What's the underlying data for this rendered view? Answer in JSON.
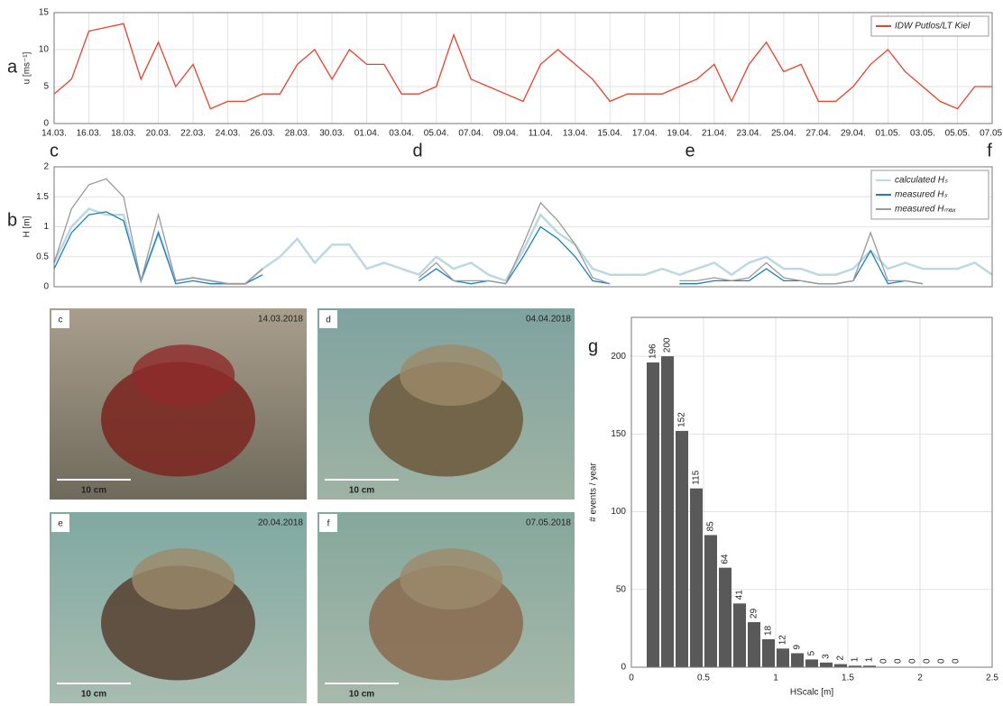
{
  "chart_data": [
    {
      "type": "line",
      "panel_label": "a",
      "y_label": "u [ms⁻¹]",
      "categories": [
        "14.03.",
        null,
        "16.03.",
        null,
        "18.03.",
        null,
        "20.03.",
        null,
        "22.03.",
        null,
        "24.03.",
        null,
        "26.03.",
        null,
        "28.03.",
        null,
        "30.03.",
        null,
        "01.04.",
        null,
        "03.04.",
        null,
        "05.04.",
        null,
        "07.04.",
        null,
        "09.04.",
        null,
        "11.04.",
        null,
        "13.04.",
        null,
        "15.04.",
        null,
        "17.04.",
        null,
        "19.04.",
        null,
        "21.04.",
        null,
        "23.04.",
        null,
        "25.04.",
        null,
        "27.04.",
        null,
        "29.04.",
        null,
        "01.05.",
        null,
        "03.05.",
        null,
        "05.05.",
        null,
        "07.05."
      ],
      "series": [
        {
          "name": "IDW Putlos/LT Kiel",
          "color": "#e8412c",
          "values": [
            4,
            6,
            12.5,
            13,
            13.5,
            6,
            11,
            5,
            8,
            2,
            3,
            3,
            4,
            4,
            8,
            10,
            6,
            10,
            8,
            8,
            4,
            4,
            5,
            12,
            6,
            5,
            4,
            3,
            8,
            10,
            8,
            6,
            3,
            4,
            4,
            4,
            5,
            6,
            8,
            3,
            8,
            11,
            7,
            8,
            3,
            3,
            5,
            8,
            10,
            7,
            5,
            3,
            2,
            5,
            5
          ]
        }
      ],
      "ylim": [
        0,
        15
      ],
      "yticks": [
        0,
        5,
        10,
        15
      ],
      "grid": true,
      "legend": "top-right"
    },
    {
      "type": "line",
      "panel_label": "b",
      "y_label": "H [m]",
      "categories": [
        null,
        null,
        null,
        null,
        null,
        null,
        null,
        null,
        null,
        null,
        null,
        null,
        null,
        null,
        null,
        null,
        null,
        null,
        null,
        null,
        null,
        null,
        null,
        null,
        null,
        null,
        null,
        null,
        null,
        null,
        null,
        null,
        null,
        null,
        null,
        null,
        null,
        null,
        null,
        null,
        null,
        null,
        null,
        null,
        null,
        null,
        null,
        null,
        null,
        null,
        null,
        null,
        null,
        null,
        null
      ],
      "series": [
        {
          "name": "calculated Hₛ",
          "color": "#bcd9e2",
          "values": [
            0.4,
            1.0,
            1.3,
            1.2,
            1.2,
            0.1,
            0.9,
            0.1,
            0.15,
            0.1,
            0.05,
            0.05,
            0.3,
            0.5,
            0.8,
            0.4,
            0.7,
            0.7,
            0.3,
            0.4,
            0.3,
            0.2,
            0.5,
            0.3,
            0.4,
            0.2,
            0.1,
            0.6,
            1.2,
            0.9,
            0.7,
            0.3,
            0.2,
            0.2,
            0.2,
            0.3,
            0.2,
            0.3,
            0.4,
            0.2,
            0.4,
            0.5,
            0.3,
            0.3,
            0.2,
            0.2,
            0.3,
            0.6,
            0.3,
            0.4,
            0.3,
            0.3,
            0.3,
            0.4,
            0.2
          ]
        },
        {
          "name": "measured Hₛ",
          "color": "#1a7fc0",
          "values": [
            0.3,
            0.9,
            1.2,
            1.25,
            1.1,
            0.1,
            0.9,
            0.05,
            0.1,
            0.05,
            0.05,
            0.05,
            0.2,
            null,
            null,
            null,
            null,
            null,
            null,
            null,
            null,
            0.1,
            0.3,
            0.1,
            0.05,
            0.1,
            0.05,
            0.5,
            1.0,
            0.8,
            0.5,
            0.1,
            0.05,
            null,
            null,
            null,
            0.05,
            0.05,
            0.1,
            0.1,
            0.1,
            0.3,
            0.1,
            0.1,
            0.05,
            0.05,
            0.1,
            0.6,
            0.05,
            0.1,
            0.05,
            null,
            null,
            null,
            null
          ]
        },
        {
          "name": "measured Hₘₐₓ",
          "color": "#9a9a9a",
          "values": [
            0.4,
            1.3,
            1.7,
            1.8,
            1.5,
            0.1,
            1.2,
            0.1,
            0.15,
            0.1,
            0.05,
            0.05,
            0.3,
            null,
            null,
            null,
            null,
            null,
            null,
            null,
            null,
            0.15,
            0.4,
            0.1,
            0.1,
            0.1,
            0.05,
            0.7,
            1.4,
            1.1,
            0.7,
            0.15,
            0.05,
            null,
            null,
            null,
            0.1,
            0.1,
            0.15,
            0.1,
            0.15,
            0.4,
            0.15,
            0.1,
            0.05,
            0.05,
            0.1,
            0.9,
            0.1,
            0.1,
            0.05,
            null,
            null,
            null,
            null
          ]
        }
      ],
      "ylim": [
        0,
        2
      ],
      "yticks": [
        0,
        0.5,
        1,
        1.5,
        2
      ],
      "grid": true,
      "legend": "top-right"
    },
    {
      "type": "histogram",
      "panel_label": "g",
      "x_label": "HScalc [m]",
      "y_label": "# events / year",
      "color": "#595959",
      "bins": [
        0.1,
        0.2,
        0.3,
        0.4,
        0.5,
        0.6,
        0.7,
        0.8,
        0.9,
        1.0,
        1.1,
        1.2,
        1.3,
        1.4,
        1.5,
        1.6,
        1.7,
        1.8,
        1.9,
        2.0,
        2.1,
        2.2,
        2.3
      ],
      "counts": [
        196,
        200,
        152,
        115,
        85,
        64,
        41,
        29,
        18,
        12,
        9,
        5,
        3,
        2,
        1,
        1,
        0,
        0,
        0,
        0,
        0,
        0
      ],
      "xlim": [
        0,
        2.5
      ],
      "xticks": [
        0,
        0.5,
        1,
        1.5,
        2,
        2.5
      ],
      "ylim": [
        0,
        225
      ],
      "yticks": [
        0,
        50,
        100,
        150,
        200
      ],
      "grid": true
    }
  ],
  "photos": [
    {
      "label": "c",
      "date": "14.03.2018",
      "scale": "10 cm"
    },
    {
      "label": "d",
      "date": "04.04.2018",
      "scale": "10 cm"
    },
    {
      "label": "e",
      "date": "20.04.2018",
      "scale": "10 cm"
    },
    {
      "label": "f",
      "date": "07.05.2018",
      "scale": "10 cm"
    }
  ]
}
